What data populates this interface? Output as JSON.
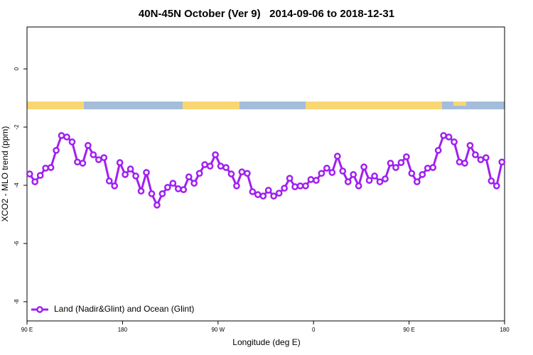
{
  "chart_data": {
    "type": "line",
    "title": "40N-45N October (Ver 9)   2014-09-06 to 2018-12-31",
    "x_label": "Longitude (deg E)",
    "y_label": "XCO2 - MLO trend (ppm)",
    "xlim": [
      90,
      540
    ],
    "xticks": [
      {
        "value": 90,
        "label": "90 E"
      },
      180,
      {
        "value": 270,
        "label": "90 W"
      },
      {
        "value": 360,
        "label": "0"
      },
      {
        "value": 450,
        "label": "90 E"
      },
      {
        "value": 540,
        "label": "180"
      }
    ],
    "ylim": [
      -8.66,
      1.44
    ],
    "yticks": [
      0,
      -2,
      -4,
      -6,
      -8
    ],
    "legend": "bottom-left",
    "x": [
      92.5,
      97.5,
      102.5,
      107.5,
      112.5,
      117.5,
      122.5,
      127.5,
      132.5,
      137.5,
      142.5,
      147.5,
      152.5,
      157.5,
      162.5,
      167.5,
      172.5,
      177.5,
      182.5,
      187.5,
      192.5,
      197.5,
      202.5,
      207.5,
      212.5,
      217.5,
      222.5,
      227.5,
      232.5,
      237.5,
      242.5,
      247.5,
      252.5,
      257.5,
      262.5,
      267.5,
      272.5,
      277.5,
      282.5,
      287.5,
      292.5,
      297.5,
      302.5,
      307.5,
      312.5,
      317.5,
      322.5,
      327.5,
      332.5,
      337.5,
      342.5,
      347.5,
      352.5,
      357.5,
      362.5,
      367.5,
      372.5,
      377.5,
      382.5,
      387.5,
      392.5,
      397.5,
      402.5,
      407.5,
      412.5,
      417.5,
      422.5,
      427.5,
      432.5,
      437.5,
      442.5,
      447.5,
      452.5,
      457.5,
      462.5,
      467.5,
      472.5,
      477.5,
      482.5,
      487.5,
      492.5,
      497.5,
      502.5,
      507.5,
      512.5,
      517.5,
      522.5,
      527.5,
      532.5,
      537.5
    ],
    "series": [
      {
        "name": "Land (Nadir&Glint) and Ocean (Glint)",
        "color": "#a020f0",
        "values": [
          -3.61,
          -3.88,
          -3.66,
          -3.41,
          -3.39,
          -2.8,
          -2.29,
          -2.34,
          -2.51,
          -3.2,
          -3.24,
          -2.63,
          -2.95,
          -3.12,
          -3.05,
          -3.85,
          -4.02,
          -3.22,
          -3.63,
          -3.44,
          -3.68,
          -4.2,
          -3.56,
          -4.29,
          -4.68,
          -4.29,
          -4.07,
          -3.93,
          -4.12,
          -4.15,
          -3.71,
          -3.93,
          -3.59,
          -3.29,
          -3.34,
          -2.95,
          -3.34,
          -3.39,
          -3.61,
          -4.02,
          -3.54,
          -3.59,
          -4.22,
          -4.32,
          -4.37,
          -4.17,
          -4.37,
          -4.27,
          -4.1,
          -3.76,
          -4.05,
          -4.02,
          -4.02,
          -3.8,
          -3.83,
          -3.59,
          -3.41,
          -3.56,
          -3.0,
          -3.51,
          -3.88,
          -3.63,
          -4.02,
          -3.37,
          -3.83,
          -3.68,
          -3.88,
          -3.78,
          -3.24,
          -3.39,
          -3.22,
          -3.02,
          -3.59,
          -3.88,
          -3.63,
          -3.41,
          -3.39,
          -2.8,
          -2.29,
          -2.34,
          -2.51,
          -3.2,
          -3.24,
          -2.63,
          -2.95,
          -3.12,
          -3.05,
          -3.85,
          -4.02,
          -3.2
        ]
      }
    ]
  }
}
